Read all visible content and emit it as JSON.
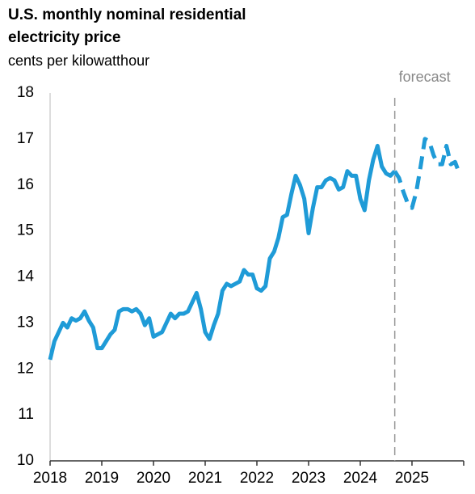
{
  "chart_data": {
    "type": "line",
    "title": [
      "U.S. monthly nominal residential",
      "electricity price"
    ],
    "subtitle": "cents per kilowatthour",
    "annotation": "forecast",
    "categories": [
      "2018",
      null,
      null,
      null,
      null,
      null,
      null,
      null,
      null,
      null,
      null,
      null,
      "2019",
      null,
      null,
      null,
      null,
      null,
      null,
      null,
      null,
      null,
      null,
      null,
      "2020",
      null,
      null,
      null,
      null,
      null,
      null,
      null,
      null,
      null,
      null,
      null,
      "2021",
      null,
      null,
      null,
      null,
      null,
      null,
      null,
      null,
      null,
      null,
      null,
      "2022",
      null,
      null,
      null,
      null,
      null,
      null,
      null,
      null,
      null,
      null,
      null,
      "2023",
      null,
      null,
      null,
      null,
      null,
      null,
      null,
      null,
      null,
      null,
      null,
      "2024",
      null,
      null,
      null,
      null,
      null,
      null,
      null,
      null,
      null,
      null,
      null,
      "2025",
      null,
      null,
      null,
      null,
      null,
      null,
      null,
      null,
      null,
      null,
      null
    ],
    "series": [
      {
        "color": "#1f9bd7",
        "dashed": false,
        "values": [
          12.2,
          12.6,
          12.8,
          13.0,
          12.9,
          13.1,
          13.05,
          13.1,
          13.25,
          13.05,
          12.9,
          12.45,
          12.45,
          12.6,
          12.75,
          12.85,
          13.25,
          13.3,
          13.3,
          13.25,
          13.3,
          13.2,
          12.95,
          13.1,
          12.7,
          12.75,
          12.8,
          13.0,
          13.2,
          13.1,
          13.2,
          13.2,
          13.25,
          13.45,
          13.65,
          13.3,
          12.8,
          12.65,
          12.95,
          13.2,
          13.7,
          13.85,
          13.8,
          13.85,
          13.9,
          14.15,
          14.05,
          14.05,
          13.75,
          13.7,
          13.8,
          14.4,
          14.55,
          14.85,
          15.3,
          15.35,
          15.8,
          16.2,
          16.0,
          15.7,
          14.95,
          15.5,
          15.95,
          15.95,
          16.1,
          16.15,
          16.1,
          15.9,
          15.95,
          16.3,
          16.2,
          16.2,
          15.7,
          15.45,
          16.1,
          16.55,
          16.85,
          16.4,
          16.25,
          16.2,
          16.3,
          null,
          null,
          null,
          null,
          null,
          null,
          null,
          null,
          null,
          null,
          null,
          null,
          null,
          null,
          null
        ]
      },
      {
        "color": "#1f9bd7",
        "dashed": true,
        "values": [
          null,
          null,
          null,
          null,
          null,
          null,
          null,
          null,
          null,
          null,
          null,
          null,
          null,
          null,
          null,
          null,
          null,
          null,
          null,
          null,
          null,
          null,
          null,
          null,
          null,
          null,
          null,
          null,
          null,
          null,
          null,
          null,
          null,
          null,
          null,
          null,
          null,
          null,
          null,
          null,
          null,
          null,
          null,
          null,
          null,
          null,
          null,
          null,
          null,
          null,
          null,
          null,
          null,
          null,
          null,
          null,
          null,
          null,
          null,
          null,
          null,
          null,
          null,
          null,
          null,
          null,
          null,
          null,
          null,
          null,
          null,
          null,
          null,
          null,
          null,
          null,
          null,
          null,
          null,
          null,
          16.3,
          16.15,
          15.85,
          15.6,
          15.5,
          15.85,
          16.4,
          17.0,
          16.95,
          16.65,
          16.45,
          16.45,
          16.85,
          16.45,
          16.5,
          16.25
        ]
      }
    ],
    "ylim": [
      10,
      18
    ],
    "yticks": [
      10,
      11,
      12,
      13,
      14,
      15,
      16,
      17,
      18
    ],
    "grid": false
  }
}
